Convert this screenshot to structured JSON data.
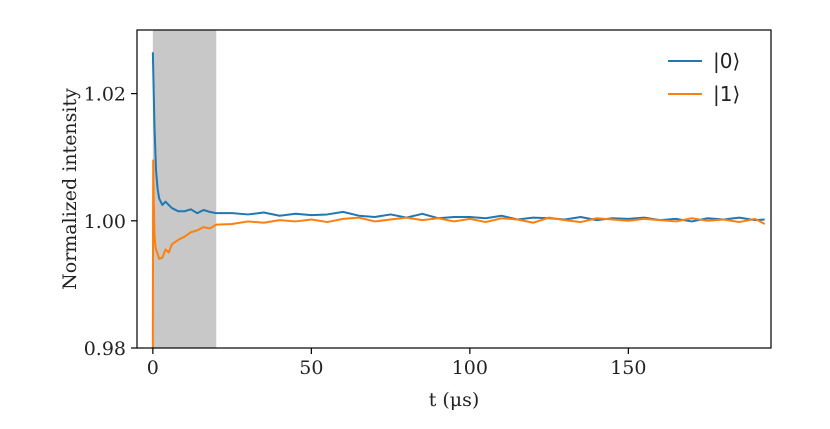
{
  "chart_data": {
    "type": "line",
    "title": "",
    "xlabel": "t (μs)",
    "ylabel": "Normalized intensity",
    "xlim": [
      -5,
      195
    ],
    "ylim": [
      0.98,
      1.03
    ],
    "xticks": [
      0,
      50,
      100,
      150
    ],
    "xtick_labels": [
      "0",
      "50",
      "100",
      "150"
    ],
    "yticks": [
      0.98,
      1.0,
      1.02
    ],
    "ytick_labels": [
      "0.98",
      "1.00",
      "1.02"
    ],
    "shaded_region": {
      "x": [
        0,
        20
      ],
      "color": "#c8c8c8"
    },
    "grid": false,
    "legend_position": "top-right",
    "series": [
      {
        "name": "|0⟩",
        "color": "#1f77b4",
        "x": [
          0,
          0.5,
          1,
          1.5,
          2,
          3,
          4,
          5,
          6,
          8,
          10,
          12,
          14,
          16,
          18,
          20,
          25,
          30,
          35,
          40,
          45,
          50,
          55,
          60,
          65,
          70,
          75,
          80,
          85,
          90,
          95,
          100,
          105,
          110,
          115,
          120,
          125,
          130,
          135,
          140,
          145,
          150,
          155,
          160,
          165,
          170,
          175,
          180,
          185,
          190,
          193
        ],
        "y": [
          1.0265,
          1.015,
          1.008,
          1.005,
          1.0035,
          1.0025,
          1.003,
          1.0025,
          1.002,
          1.0015,
          1.0015,
          1.0018,
          1.0012,
          1.0017,
          1.0014,
          1.0012,
          1.0012,
          1.001,
          1.0013,
          1.0008,
          1.0011,
          1.0009,
          1.001,
          1.0014,
          1.0008,
          1.0006,
          1.001,
          1.0005,
          1.0011,
          1.0004,
          1.0006,
          1.0006,
          1.0004,
          1.0008,
          1.0002,
          1.0005,
          1.0004,
          1.0002,
          1.0006,
          1.0001,
          1.0004,
          1.0003,
          1.0005,
          1.0001,
          1.0003,
          0.9999,
          1.0004,
          1.0002,
          1.0005,
          1.0001,
          1.0002
        ]
      },
      {
        "name": "|1⟩",
        "color": "#ff7f0e",
        "x": [
          0,
          0.1,
          0.3,
          0.5,
          0.8,
          1,
          1.5,
          2,
          3,
          4,
          5,
          6,
          8,
          10,
          12,
          14,
          16,
          18,
          20,
          25,
          30,
          35,
          40,
          45,
          50,
          55,
          60,
          65,
          70,
          75,
          80,
          85,
          90,
          95,
          100,
          105,
          110,
          115,
          120,
          125,
          130,
          135,
          140,
          145,
          150,
          155,
          160,
          165,
          170,
          175,
          180,
          185,
          190,
          193
        ],
        "y": [
          0.98,
          1.0095,
          1.003,
          0.9978,
          0.996,
          0.9955,
          0.9948,
          0.994,
          0.9942,
          0.9955,
          0.995,
          0.9963,
          0.997,
          0.9975,
          0.9982,
          0.9985,
          0.999,
          0.9988,
          0.9994,
          0.9995,
          0.9999,
          0.9997,
          1.0001,
          0.9999,
          1.0002,
          0.9998,
          1.0003,
          1.0005,
          0.9999,
          1.0002,
          1.0005,
          1.0001,
          1.0004,
          0.9999,
          1.0003,
          0.9998,
          1.0004,
          1.0002,
          0.9997,
          1.0005,
          1.0001,
          0.9998,
          1.0004,
          1.0002,
          1.0,
          1.0003,
          1.0001,
          0.9999,
          1.0004,
          1.0,
          1.0002,
          0.9998,
          1.0003,
          0.9995
        ]
      }
    ]
  }
}
